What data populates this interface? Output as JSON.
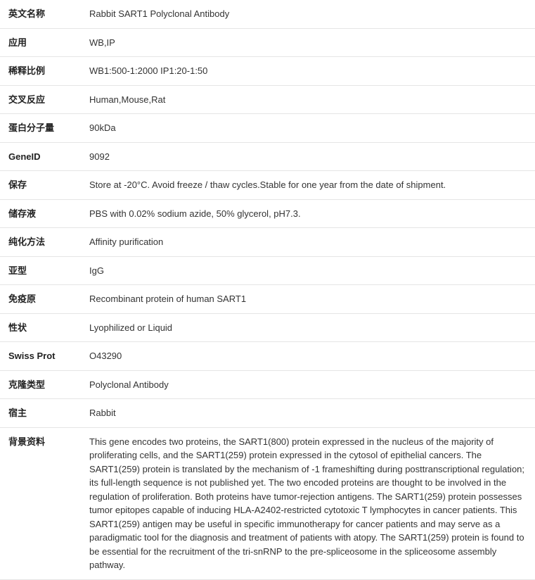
{
  "rows": [
    {
      "label": "英文名称",
      "value": "Rabbit SART1 Polyclonal Antibody"
    },
    {
      "label": "应用",
      "value": "WB,IP"
    },
    {
      "label": "稀释比例",
      "value": "WB1:500-1:2000 IP1:20-1:50"
    },
    {
      "label": "交叉反应",
      "value": "Human,Mouse,Rat"
    },
    {
      "label": "蛋白分子量",
      "value": "90kDa"
    },
    {
      "label": "GeneID",
      "value": "9092"
    },
    {
      "label": "保存",
      "value": "Store at -20°C. Avoid freeze / thaw cycles.Stable for one year from the date of shipment."
    },
    {
      "label": "储存液",
      "value": "PBS with 0.02% sodium azide, 50% glycerol, pH7.3."
    },
    {
      "label": "纯化方法",
      "value": "Affinity purification"
    },
    {
      "label": "亚型",
      "value": "IgG"
    },
    {
      "label": "免疫原",
      "value": "Recombinant protein of human SART1"
    },
    {
      "label": "性状",
      "value": "Lyophilized or Liquid"
    },
    {
      "label": "Swiss Prot",
      "value": "O43290"
    },
    {
      "label": "克隆类型",
      "value": "Polyclonal Antibody"
    },
    {
      "label": "宿主",
      "value": "Rabbit"
    },
    {
      "label": "背景资料",
      "value": "This gene encodes two proteins, the SART1(800) protein expressed in the nucleus of the majority of proliferating cells, and the SART1(259) protein expressed in the cytosol of epithelial cancers. The SART1(259) protein is translated by the mechanism of -1 frameshifting during posttranscriptional regulation; its full-length sequence is not published yet. The two encoded proteins are thought to be involved in the regulation of proliferation. Both proteins have tumor-rejection antigens. The SART1(259) protein possesses tumor epitopes capable of inducing HLA-A2402-restricted cytotoxic T lymphocytes in cancer patients. This SART1(259) antigen may be useful in specific immunotherapy for cancer patients and may serve as a paradigmatic tool for the diagnosis and treatment of patients with atopy. The SART1(259) protein is found to be essential for the recruitment of the tri-snRNP to the pre-spliceosome in the spliceosome assembly pathway."
    }
  ]
}
